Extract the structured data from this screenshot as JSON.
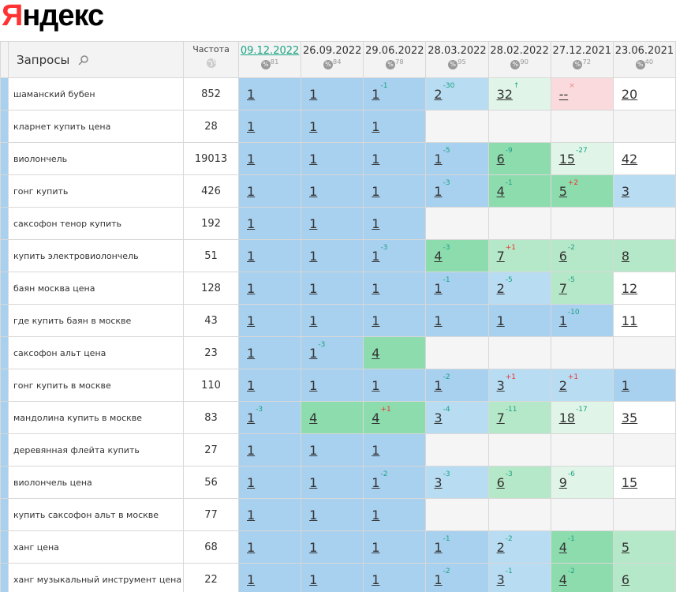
{
  "logo": {
    "first": "Я",
    "rest": "ндекс"
  },
  "table": {
    "header": {
      "query": "Запросы",
      "frequency": "Частота"
    },
    "columns": [
      {
        "date": "09.12.2022",
        "percent": 81
      },
      {
        "date": "26.09.2022",
        "percent": 84
      },
      {
        "date": "29.06.2022",
        "percent": 78
      },
      {
        "date": "28.03.2022",
        "percent": 95
      },
      {
        "date": "28.02.2022",
        "percent": 90
      },
      {
        "date": "27.12.2021",
        "percent": 72
      },
      {
        "date": "23.06.2021",
        "percent": 40
      }
    ],
    "rows": [
      {
        "query": "шаманский бубен",
        "frequency": 852,
        "cells": [
          {
            "pos": "1",
            "color": "#a8d0ef"
          },
          {
            "pos": "1",
            "color": "#a8d0ef"
          },
          {
            "pos": "1",
            "delta": "-1",
            "color": "#a8d0ef"
          },
          {
            "pos": "2",
            "delta": "-30",
            "color": "#b8dcf2"
          },
          {
            "pos": "32",
            "delta": "↑",
            "color": "#e0f5e8"
          },
          {
            "pos": "--",
            "delta": "×",
            "color": "#fadadd"
          },
          {
            "pos": "20",
            "color": "#ffffff"
          }
        ]
      },
      {
        "query": "кларнет купить цена",
        "frequency": 28,
        "cells": [
          {
            "pos": "1",
            "color": "#a8d0ef"
          },
          {
            "pos": "1",
            "color": "#a8d0ef"
          },
          {
            "pos": "1",
            "color": "#a8d0ef"
          },
          {
            "color": "#f5f5f5"
          },
          {
            "color": "#f5f5f5"
          },
          {
            "color": "#f5f5f5"
          },
          {
            "color": "#f5f5f5"
          }
        ]
      },
      {
        "query": "виолончель",
        "frequency": 19013,
        "cells": [
          {
            "pos": "1",
            "color": "#a8d0ef"
          },
          {
            "pos": "1",
            "color": "#a8d0ef"
          },
          {
            "pos": "1",
            "color": "#a8d0ef"
          },
          {
            "pos": "1",
            "delta": "-5",
            "color": "#a8d0ef"
          },
          {
            "pos": "6",
            "delta": "-9",
            "color": "#8ddcae"
          },
          {
            "pos": "15",
            "delta": "-27",
            "color": "#e0f5e8"
          },
          {
            "pos": "42",
            "color": "#ffffff"
          }
        ]
      },
      {
        "query": "гонг купить",
        "frequency": 426,
        "cells": [
          {
            "pos": "1",
            "color": "#a8d0ef"
          },
          {
            "pos": "1",
            "color": "#a8d0ef"
          },
          {
            "pos": "1",
            "color": "#a8d0ef"
          },
          {
            "pos": "1",
            "delta": "-3",
            "color": "#a8d0ef"
          },
          {
            "pos": "4",
            "delta": "-1",
            "color": "#8ddcae"
          },
          {
            "pos": "5",
            "delta": "+2",
            "color": "#8ddcae"
          },
          {
            "pos": "3",
            "color": "#b8dcf2"
          }
        ]
      },
      {
        "query": "саксофон тенор купить",
        "frequency": 192,
        "cells": [
          {
            "pos": "1",
            "color": "#a8d0ef"
          },
          {
            "pos": "1",
            "color": "#a8d0ef"
          },
          {
            "pos": "1",
            "color": "#a8d0ef"
          },
          {
            "color": "#f5f5f5"
          },
          {
            "color": "#f5f5f5"
          },
          {
            "color": "#f5f5f5"
          },
          {
            "color": "#f5f5f5"
          }
        ]
      },
      {
        "query": "купить электровиолончель",
        "frequency": 51,
        "cells": [
          {
            "pos": "1",
            "color": "#a8d0ef"
          },
          {
            "pos": "1",
            "color": "#a8d0ef"
          },
          {
            "pos": "1",
            "delta": "-3",
            "color": "#a8d0ef"
          },
          {
            "pos": "4",
            "delta": "-3",
            "color": "#8ddcae"
          },
          {
            "pos": "7",
            "delta": "+1",
            "color": "#b5e8c8"
          },
          {
            "pos": "6",
            "delta": "-2",
            "color": "#b5e8c8"
          },
          {
            "pos": "8",
            "color": "#b5e8c8"
          }
        ]
      },
      {
        "query": "баян москва цена",
        "frequency": 128,
        "cells": [
          {
            "pos": "1",
            "color": "#a8d0ef"
          },
          {
            "pos": "1",
            "color": "#a8d0ef"
          },
          {
            "pos": "1",
            "color": "#a8d0ef"
          },
          {
            "pos": "1",
            "delta": "-1",
            "color": "#a8d0ef"
          },
          {
            "pos": "2",
            "delta": "-5",
            "color": "#b8dcf2"
          },
          {
            "pos": "7",
            "delta": "-5",
            "color": "#b5e8c8"
          },
          {
            "pos": "12",
            "color": "#ffffff"
          }
        ]
      },
      {
        "query": "где купить баян в москве",
        "frequency": 43,
        "cells": [
          {
            "pos": "1",
            "color": "#a8d0ef"
          },
          {
            "pos": "1",
            "color": "#a8d0ef"
          },
          {
            "pos": "1",
            "color": "#a8d0ef"
          },
          {
            "pos": "1",
            "color": "#a8d0ef"
          },
          {
            "pos": "1",
            "color": "#a8d0ef"
          },
          {
            "pos": "1",
            "delta": "-10",
            "color": "#a8d0ef"
          },
          {
            "pos": "11",
            "color": "#ffffff"
          }
        ]
      },
      {
        "query": "саксофон альт цена",
        "frequency": 23,
        "cells": [
          {
            "pos": "1",
            "color": "#a8d0ef"
          },
          {
            "pos": "1",
            "delta": "-3",
            "color": "#a8d0ef"
          },
          {
            "pos": "4",
            "color": "#8ddcae"
          },
          {
            "color": "#f5f5f5"
          },
          {
            "color": "#f5f5f5"
          },
          {
            "color": "#f5f5f5"
          },
          {
            "color": "#f5f5f5"
          }
        ]
      },
      {
        "query": "гонг купить в москве",
        "frequency": 110,
        "cells": [
          {
            "pos": "1",
            "color": "#a8d0ef"
          },
          {
            "pos": "1",
            "color": "#a8d0ef"
          },
          {
            "pos": "1",
            "color": "#a8d0ef"
          },
          {
            "pos": "1",
            "delta": "-2",
            "color": "#a8d0ef"
          },
          {
            "pos": "3",
            "delta": "+1",
            "color": "#b8dcf2"
          },
          {
            "pos": "2",
            "delta": "+1",
            "color": "#b8dcf2"
          },
          {
            "pos": "1",
            "color": "#a8d0ef"
          }
        ]
      },
      {
        "query": "мандолина купить в москве",
        "frequency": 83,
        "cells": [
          {
            "pos": "1",
            "delta": "-3",
            "color": "#a8d0ef"
          },
          {
            "pos": "4",
            "color": "#8ddcae"
          },
          {
            "pos": "4",
            "delta": "+1",
            "color": "#8ddcae"
          },
          {
            "pos": "3",
            "delta": "-4",
            "color": "#b8dcf2"
          },
          {
            "pos": "7",
            "delta": "-11",
            "color": "#b5e8c8"
          },
          {
            "pos": "18",
            "delta": "-17",
            "color": "#e0f5e8"
          },
          {
            "pos": "35",
            "color": "#ffffff"
          }
        ]
      },
      {
        "query": "деревянная флейта купить",
        "frequency": 27,
        "cells": [
          {
            "pos": "1",
            "color": "#a8d0ef"
          },
          {
            "pos": "1",
            "color": "#a8d0ef"
          },
          {
            "pos": "1",
            "color": "#a8d0ef"
          },
          {
            "color": "#f5f5f5"
          },
          {
            "color": "#f5f5f5"
          },
          {
            "color": "#f5f5f5"
          },
          {
            "color": "#f5f5f5"
          }
        ]
      },
      {
        "query": "виолончель цена",
        "frequency": 56,
        "cells": [
          {
            "pos": "1",
            "color": "#a8d0ef"
          },
          {
            "pos": "1",
            "color": "#a8d0ef"
          },
          {
            "pos": "1",
            "delta": "-2",
            "color": "#a8d0ef"
          },
          {
            "pos": "3",
            "delta": "-3",
            "color": "#b8dcf2"
          },
          {
            "pos": "6",
            "delta": "-3",
            "color": "#b5e8c8"
          },
          {
            "pos": "9",
            "delta": "-6",
            "color": "#e0f5e8"
          },
          {
            "pos": "15",
            "color": "#ffffff"
          }
        ]
      },
      {
        "query": "купить саксофон альт в москве",
        "frequency": 77,
        "cells": [
          {
            "pos": "1",
            "color": "#a8d0ef"
          },
          {
            "pos": "1",
            "color": "#a8d0ef"
          },
          {
            "pos": "1",
            "color": "#a8d0ef"
          },
          {
            "color": "#f5f5f5"
          },
          {
            "color": "#f5f5f5"
          },
          {
            "color": "#f5f5f5"
          },
          {
            "color": "#f5f5f5"
          }
        ]
      },
      {
        "query": "ханг цена",
        "frequency": 68,
        "cells": [
          {
            "pos": "1",
            "color": "#a8d0ef"
          },
          {
            "pos": "1",
            "color": "#a8d0ef"
          },
          {
            "pos": "1",
            "color": "#a8d0ef"
          },
          {
            "pos": "1",
            "delta": "-1",
            "color": "#a8d0ef"
          },
          {
            "pos": "2",
            "delta": "-2",
            "color": "#b8dcf2"
          },
          {
            "pos": "4",
            "delta": "-1",
            "color": "#8ddcae"
          },
          {
            "pos": "5",
            "color": "#b5e8c8"
          }
        ]
      },
      {
        "query": "ханг музыкальный инструмент цена",
        "frequency": 22,
        "cells": [
          {
            "pos": "1",
            "color": "#a8d0ef"
          },
          {
            "pos": "1",
            "color": "#a8d0ef"
          },
          {
            "pos": "1",
            "color": "#a8d0ef"
          },
          {
            "pos": "1",
            "delta": "-2",
            "color": "#a8d0ef"
          },
          {
            "pos": "3",
            "delta": "-1",
            "color": "#b8dcf2"
          },
          {
            "pos": "4",
            "delta": "-2",
            "color": "#8ddcae"
          },
          {
            "pos": "6",
            "color": "#b5e8c8"
          }
        ]
      }
    ]
  }
}
